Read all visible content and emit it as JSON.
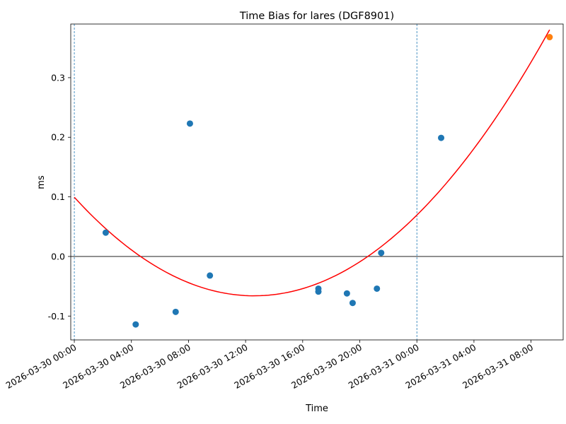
{
  "chart_data": {
    "type": "scatter",
    "title": "Time Bias for lares (DGF8901)",
    "xlabel": "Time",
    "ylabel": "ms",
    "grid": false,
    "xlim": [
      "2026-03-29 23:45",
      "2026-03-31 10:15"
    ],
    "ylim": [
      -0.14,
      0.39
    ],
    "x_ticks": [
      "2026-03-30 00:00",
      "2026-03-30 04:00",
      "2026-03-30 08:00",
      "2026-03-30 12:00",
      "2026-03-30 16:00",
      "2026-03-30 20:00",
      "2026-03-31 00:00",
      "2026-03-31 04:00",
      "2026-03-31 08:00"
    ],
    "y_ticks": [
      "-0.1",
      "0.0",
      "0.1",
      "0.2",
      "0.3"
    ],
    "y_tick_values": [
      -0.1,
      0.0,
      0.1,
      0.2,
      0.3
    ],
    "reference_lines": {
      "horizontal_y": 0.0,
      "vertical_x": [
        "2026-03-30 00:00",
        "2026-03-31 00:00"
      ]
    },
    "series": [
      {
        "type": "scatter",
        "color": "#1f77b4",
        "points": [
          {
            "x": "2026-03-30 02:12",
            "y": 0.04
          },
          {
            "x": "2026-03-30 04:18",
            "y": -0.114
          },
          {
            "x": "2026-03-30 07:06",
            "y": -0.093
          },
          {
            "x": "2026-03-30 08:06",
            "y": 0.223
          },
          {
            "x": "2026-03-30 09:30",
            "y": -0.032
          },
          {
            "x": "2026-03-30 17:06",
            "y": -0.054
          },
          {
            "x": "2026-03-30 17:06",
            "y": -0.059
          },
          {
            "x": "2026-03-30 19:06",
            "y": -0.062
          },
          {
            "x": "2026-03-30 19:30",
            "y": -0.078
          },
          {
            "x": "2026-03-30 21:12",
            "y": -0.054
          },
          {
            "x": "2026-03-30 21:30",
            "y": 0.006
          },
          {
            "x": "2026-03-31 01:42",
            "y": 0.199
          }
        ]
      },
      {
        "type": "scatter",
        "color": "#ff7f0e",
        "points": [
          {
            "x": "2026-03-31 09:18",
            "y": 0.368
          }
        ]
      },
      {
        "type": "line",
        "color": "#ff0000",
        "fit": "quadratic",
        "points": [
          {
            "x": "2026-03-30 00:00",
            "y": 0.104
          },
          {
            "x": "2026-03-30 12:36",
            "y": -0.066
          },
          {
            "x": "2026-03-31 09:18",
            "y": 0.368
          }
        ]
      }
    ]
  }
}
